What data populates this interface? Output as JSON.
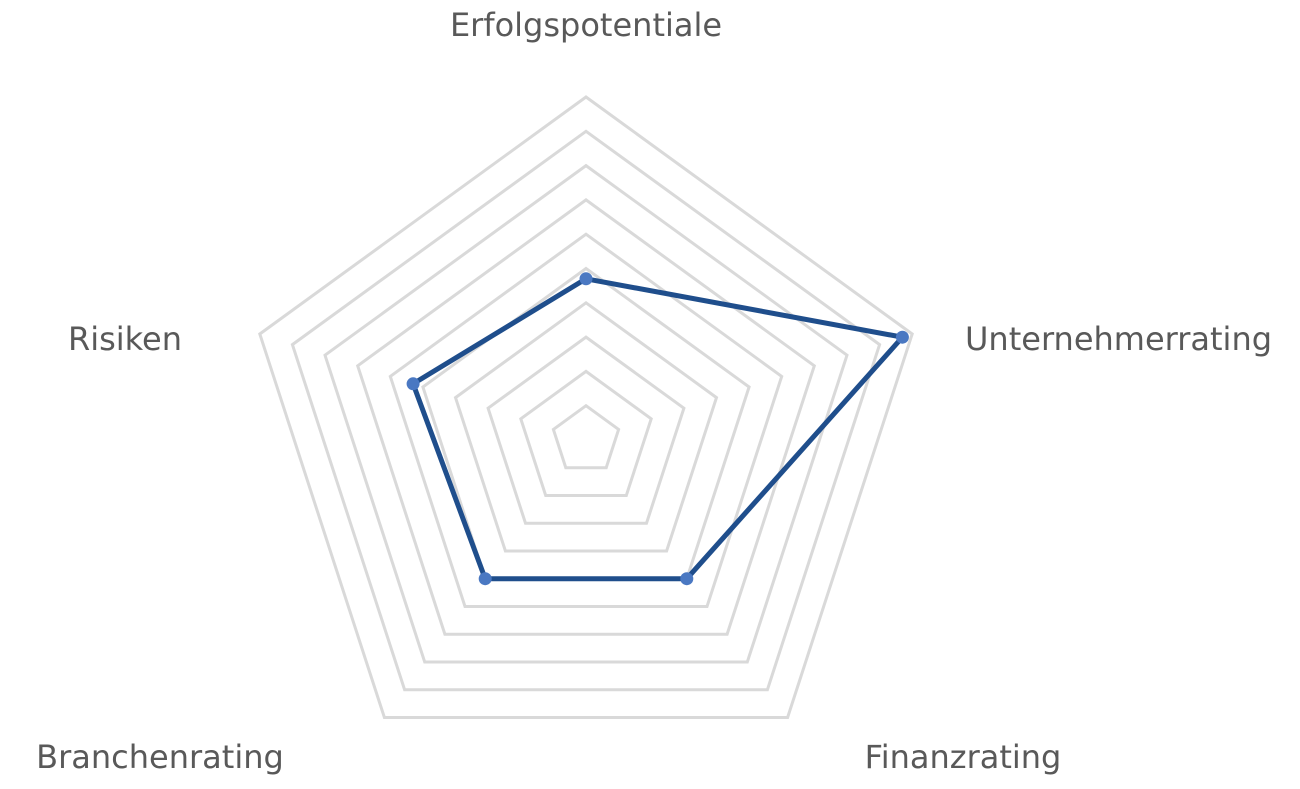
{
  "chart_data": {
    "type": "radar",
    "title": "",
    "categories": [
      "Erfolgspotentiale",
      "Unternehmerrating",
      "Finanzrating",
      "Branchenrating",
      "Risiken"
    ],
    "range": [
      0,
      10
    ],
    "grid_levels": 10,
    "grid": true,
    "legend": "none",
    "series": [
      {
        "values": [
          4.7,
          9.7,
          5.0,
          5.0,
          5.3
        ],
        "line_color": "#1f4e8c",
        "marker_color": "#4a78c2"
      }
    ],
    "grid_color": "#d9d9d9",
    "label_color": "#595959"
  }
}
